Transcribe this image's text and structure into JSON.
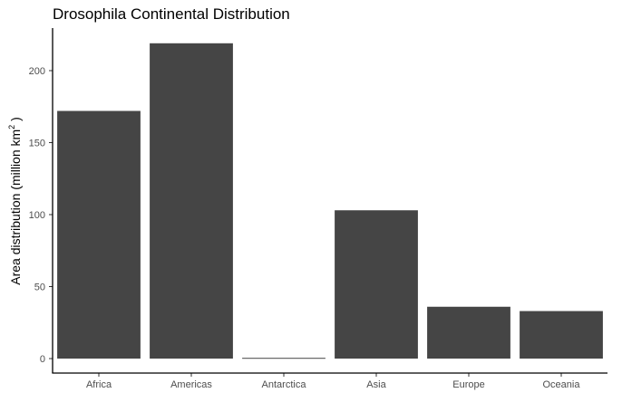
{
  "chart_data": {
    "type": "bar",
    "title": "Drosophila Continental Distribution",
    "xlabel": "",
    "ylabel": "Area distribution (million km",
    "ylabel_superscript": "2",
    "ylabel_suffix": " )",
    "categories": [
      "Africa",
      "Americas",
      "Antarctica",
      "Asia",
      "Europe",
      "Oceania"
    ],
    "values": [
      172,
      219,
      0.5,
      103,
      36,
      33
    ],
    "ylim": [
      0,
      230
    ],
    "yticks": [
      0,
      50,
      100,
      150,
      200
    ],
    "ytick_labels": [
      "0",
      "50",
      "100",
      "150",
      "200"
    ],
    "bar_color": "#454545",
    "grid": false,
    "legend": "none"
  }
}
